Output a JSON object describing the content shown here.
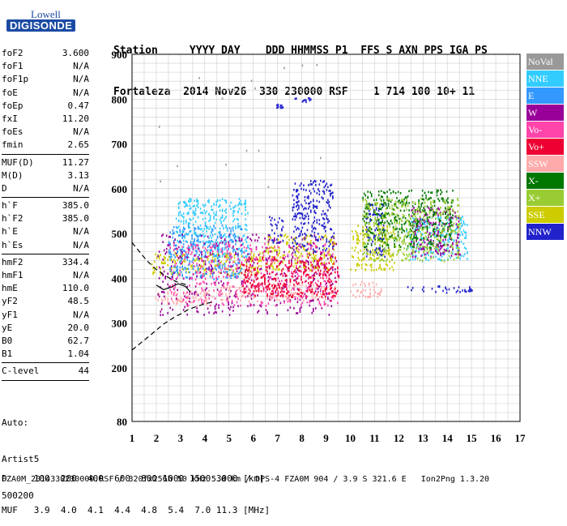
{
  "logo": {
    "line1": "Lowell",
    "line2": "DIGISONDE"
  },
  "header": {
    "line1": "Station     YYYY DAY    DDD HHMMSS P1  FFS S AXN PPS IGA PS",
    "line2": "Fortaleza  2014 Nov26  330 230000 RSF    1 714 100 10+ 11"
  },
  "params": {
    "group1": [
      {
        "label": "foF2",
        "value": "3.600"
      },
      {
        "label": "foF1",
        "value": "N/A"
      },
      {
        "label": "foF1p",
        "value": "N/A"
      },
      {
        "label": "foE",
        "value": "N/A"
      },
      {
        "label": "foEp",
        "value": "0.47"
      },
      {
        "label": "fxI",
        "value": "11.20"
      },
      {
        "label": "foEs",
        "value": "N/A"
      },
      {
        "label": "fmin",
        "value": "2.65"
      }
    ],
    "group2": [
      {
        "label": "MUF(D)",
        "value": "11.27"
      },
      {
        "label": "M(D)",
        "value": "3.13"
      },
      {
        "label": "D",
        "value": "N/A"
      }
    ],
    "group3": [
      {
        "label": "h`F",
        "value": "385.0"
      },
      {
        "label": "h`F2",
        "value": "385.0"
      },
      {
        "label": "h`E",
        "value": "N/A"
      },
      {
        "label": "h`Es",
        "value": "N/A"
      }
    ],
    "group4": [
      {
        "label": "hmF2",
        "value": "334.4"
      },
      {
        "label": "hmF1",
        "value": "N/A"
      },
      {
        "label": "hmE",
        "value": "110.0"
      },
      {
        "label": "yF2",
        "value": "48.5"
      },
      {
        "label": "yF1",
        "value": "N/A"
      },
      {
        "label": "yE",
        "value": "20.0"
      },
      {
        "label": "B0",
        "value": "62.7"
      },
      {
        "label": "B1",
        "value": "1.04"
      }
    ],
    "group5": [
      {
        "label": "C-level",
        "value": "44"
      }
    ]
  },
  "auto": {
    "line1": "Auto:",
    "line2": "Artist5",
    "line3": "500200"
  },
  "footer": {
    "d_row": "D     100  200  400  600  800 1000 1500 3000 [km]",
    "muf_row": "MUF   3.9  4.0  4.1  4.4  4.8  5.4  7.0 11.3 [MHz]",
    "info": "FZA0M_2014330230000.RSF / 320fx256h 50 kHz 5.0 km / DPS-4 FZA0M 904 / 3.9 S 321.6 E   Ion2Png 1.3.20"
  },
  "legend": [
    {
      "label": "NoVal",
      "color": "#999999"
    },
    {
      "label": "NNE",
      "color": "#33ccff"
    },
    {
      "label": "E",
      "color": "#3399ff"
    },
    {
      "label": "W",
      "color": "#990099"
    },
    {
      "label": "Vo-",
      "color": "#ff44aa"
    },
    {
      "label": "Vo+",
      "color": "#ee0033"
    },
    {
      "label": "SSW",
      "color": "#ffaaaa"
    },
    {
      "label": "X-",
      "color": "#007700"
    },
    {
      "label": "X+",
      "color": "#99cc33"
    },
    {
      "label": "SSE",
      "color": "#cccc00"
    },
    {
      "label": "NNW",
      "color": "#2222cc"
    }
  ],
  "chart_data": {
    "type": "scatter",
    "xlabel": "",
    "ylabel": "",
    "xlim": [
      1,
      17
    ],
    "ylim": [
      80,
      900
    ],
    "xticks": [
      "1",
      "2",
      "3",
      "4",
      "5",
      "6",
      "7",
      "8",
      "9",
      "10",
      "11",
      "12",
      "13",
      "14",
      "15",
      "16",
      "17"
    ],
    "yticks": [
      "80",
      "200",
      "300",
      "400",
      "500",
      "600",
      "700",
      "800",
      "900"
    ],
    "grid": true,
    "series": [
      {
        "name": "SSW",
        "color": "#ffaaaa",
        "clusters": [
          {
            "f": [
              1.8,
              3.3
            ],
            "h": [
              345,
              372
            ]
          },
          {
            "f": [
              3.3,
              4.4
            ],
            "h": [
              340,
              375
            ]
          },
          {
            "f": [
              4.5,
              6.2
            ],
            "h": [
              350,
              385
            ]
          },
          {
            "f": [
              6.5,
              9.4
            ],
            "h": [
              352,
              390
            ]
          },
          {
            "f": [
              10,
              11.3
            ],
            "h": [
              360,
              395
            ]
          }
        ]
      },
      {
        "name": "SSE",
        "color": "#cccc00",
        "clusters": [
          {
            "f": [
              1.8,
              6.4
            ],
            "h": [
              410,
              460
            ]
          },
          {
            "f": [
              6.5,
              9.4
            ],
            "h": [
              420,
              500
            ]
          },
          {
            "f": [
              10,
              11.8
            ],
            "h": [
              420,
              520
            ]
          }
        ]
      },
      {
        "name": "NNW",
        "color": "#2222cc",
        "clusters": [
          {
            "f": [
              6.6,
              7.2
            ],
            "h": [
              480,
              540
            ]
          },
          {
            "f": [
              7.6,
              9.3
            ],
            "h": [
              460,
              620
            ]
          },
          {
            "f": [
              10.6,
              11.4
            ],
            "h": [
              450,
              570
            ]
          },
          {
            "f": [
              12.3,
              15
            ],
            "h": [
              370,
              385
            ]
          },
          {
            "f": [
              6.9,
              7.2
            ],
            "h": [
              782,
              792
            ]
          },
          {
            "f": [
              7.7,
              8.4
            ],
            "h": [
              795,
              805
            ]
          }
        ]
      },
      {
        "name": "NNE",
        "color": "#33ccff",
        "clusters": [
          {
            "f": [
              2.8,
              5.8
            ],
            "h": [
              450,
              580
            ]
          },
          {
            "f": [
              12.3,
              14.8
            ],
            "h": [
              440,
              540
            ]
          }
        ]
      },
      {
        "name": "E",
        "color": "#3399ff",
        "clusters": [
          {
            "f": [
              2.5,
              5.5
            ],
            "h": [
              400,
              520
            ]
          }
        ]
      },
      {
        "name": "W",
        "color": "#990099",
        "clusters": [
          {
            "f": [
              2,
              9.5
            ],
            "h": [
              320,
              500
            ]
          },
          {
            "f": [
              12.5,
              14.5
            ],
            "h": [
              450,
              560
            ]
          }
        ]
      },
      {
        "name": "Vo-",
        "color": "#ff44aa",
        "clusters": [
          {
            "f": [
              2.5,
              9.5
            ],
            "h": [
              340,
              480
            ]
          }
        ]
      },
      {
        "name": "Vo+",
        "color": "#ee0033",
        "clusters": [
          {
            "f": [
              5.5,
              9.5
            ],
            "h": [
              360,
              450
            ]
          }
        ]
      },
      {
        "name": "X-",
        "color": "#007700",
        "clusters": [
          {
            "f": [
              10.5,
              14.2
            ],
            "h": [
              470,
              600
            ]
          }
        ]
      },
      {
        "name": "X+",
        "color": "#99cc33",
        "clusters": [
          {
            "f": [
              10.5,
              14.5
            ],
            "h": [
              440,
              580
            ]
          }
        ]
      },
      {
        "name": "NoVal",
        "color": "#999999",
        "clusters": [
          {
            "f": [
              2,
              9
            ],
            "h": [
              600,
              880
            ]
          }
        ]
      }
    ],
    "trace_curve": {
      "f": [
        1,
        1.8,
        2.3,
        2.8,
        3.1,
        3.3,
        3.6,
        4,
        4.4
      ],
      "h": [
        240,
        275,
        298,
        315,
        323,
        330,
        336,
        343,
        348
      ]
    },
    "upper_curve": {
      "f": [
        1,
        1.6,
        2,
        2.4,
        2.8,
        3.1,
        3.3
      ],
      "h": [
        480,
        440,
        420,
        405,
        393,
        388,
        385
      ]
    },
    "profile_curve": {
      "f": [
        2,
        2.3,
        2.6,
        2.9,
        3.2,
        3.4
      ],
      "h": [
        385,
        375,
        380,
        388,
        382,
        370
      ]
    }
  }
}
